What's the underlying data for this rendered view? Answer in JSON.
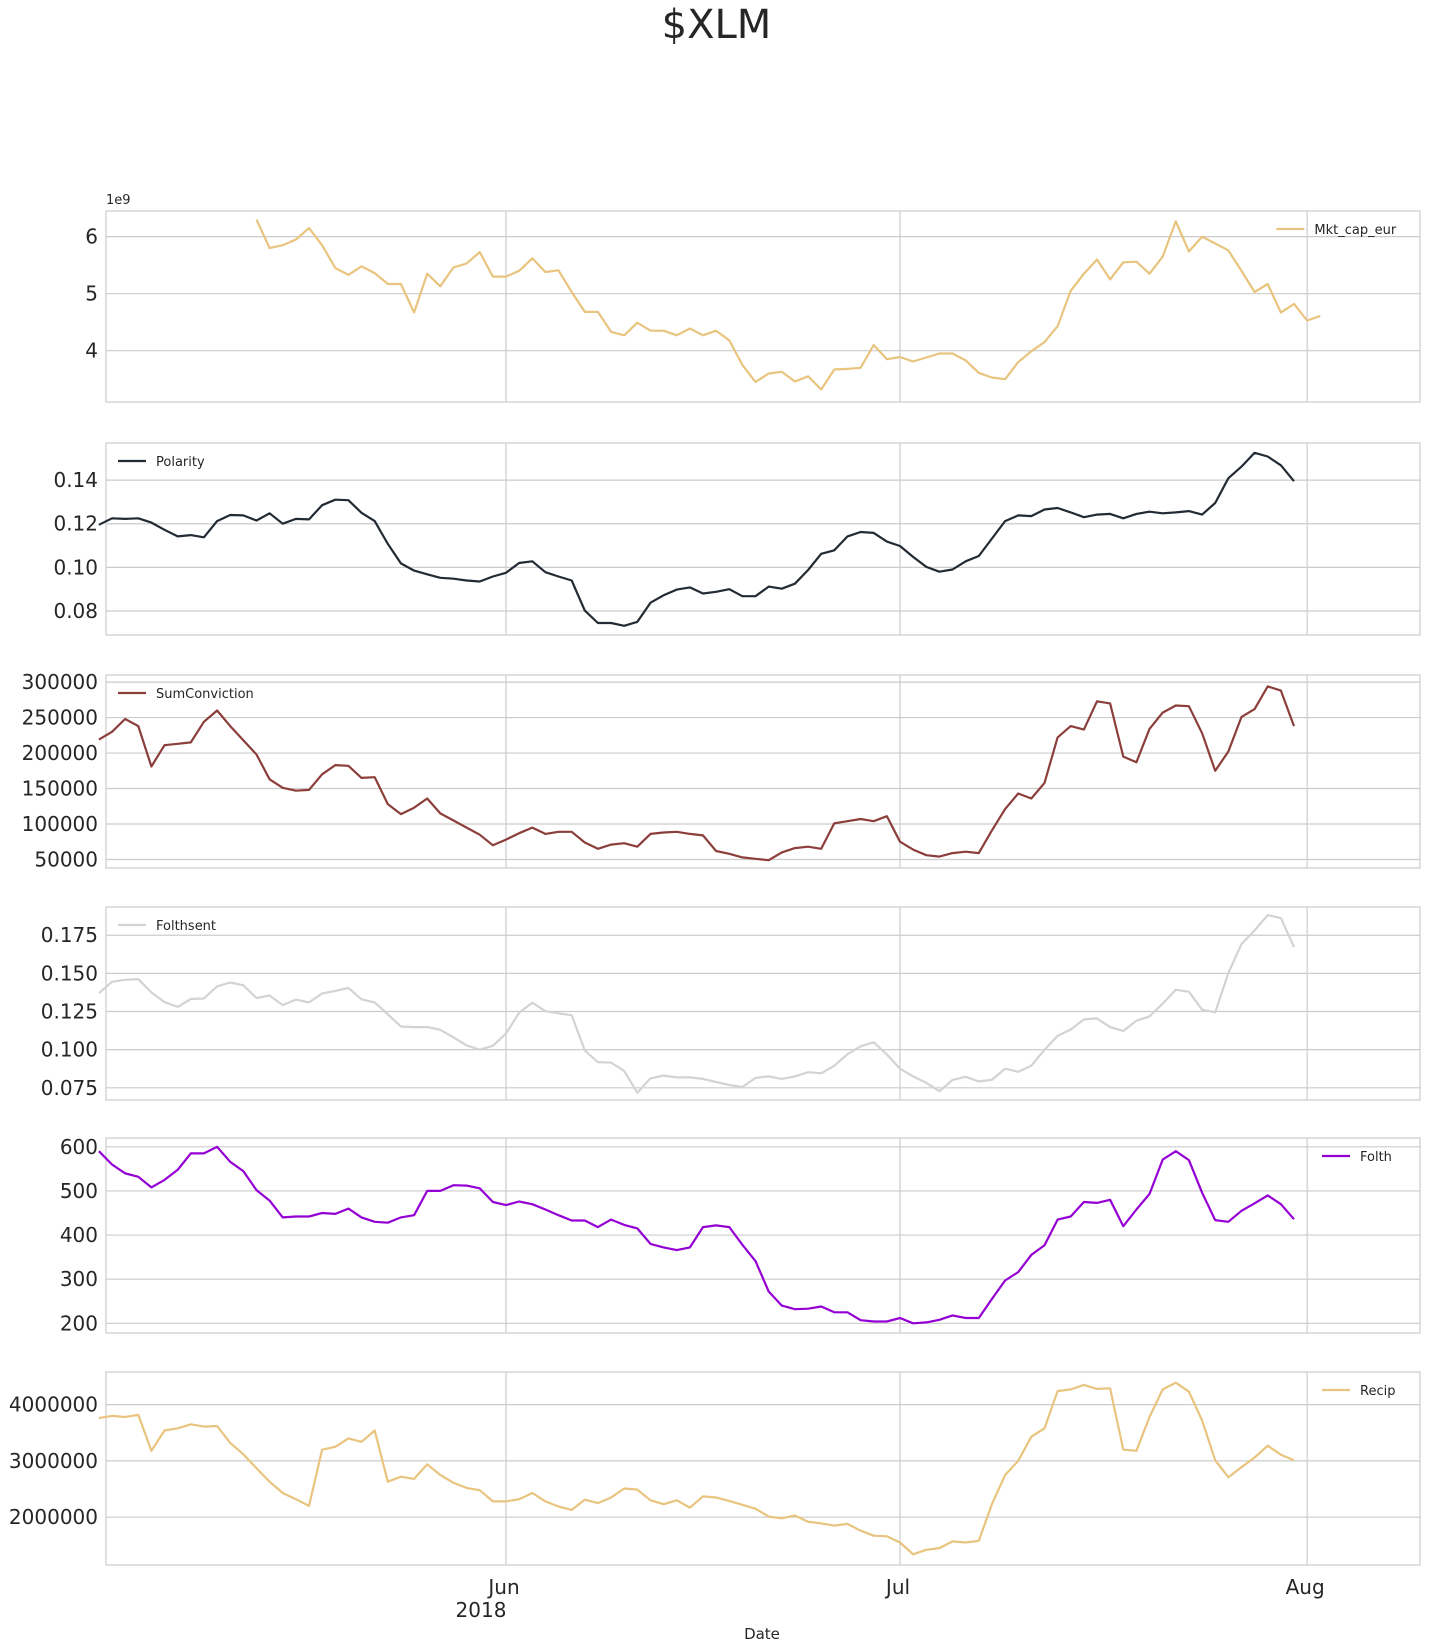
{
  "title": "$XLM",
  "xlabel": "Date",
  "x_ticks": [
    {
      "date": "2018-06-01",
      "label": "Jun",
      "sublabel": "2018"
    },
    {
      "date": "2018-07-01",
      "label": "Jul",
      "sublabel": ""
    },
    {
      "date": "2018-08-01",
      "label": "Aug",
      "sublabel": ""
    }
  ],
  "colors": {
    "grid": "#cccccc",
    "text": "#262626",
    "spine": "#cccccc"
  },
  "chart_data": [
    {
      "type": "line",
      "series": [
        {
          "name": "Mkt_cap_eur",
          "color": "#e8c47e",
          "start": "2018-05-13",
          "values": [
            6300000000.0,
            5800000000.0,
            5850000000.0,
            5950000000.0,
            6150000000.0,
            5850000000.0,
            5450000000.0,
            5330000000.0,
            5480000000.0,
            5360000000.0,
            5170000000.0,
            5170000000.0,
            4670000000.0,
            5350000000.0,
            5130000000.0,
            5460000000.0,
            5530000000.0,
            5730000000.0,
            5300000000.0,
            5300000000.0,
            5400000000.0,
            5620000000.0,
            5380000000.0,
            5410000000.0,
            5030000000.0,
            4680000000.0,
            4680000000.0,
            4330000000.0,
            4270000000.0,
            4490000000.0,
            4350000000.0,
            4350000000.0,
            4270000000.0,
            4390000000.0,
            4270000000.0,
            4350000000.0,
            4180000000.0,
            3750000000.0,
            3450000000.0,
            3600000000.0,
            3630000000.0,
            3460000000.0,
            3550000000.0,
            3320000000.0,
            3670000000.0,
            3680000000.0,
            3700000000.0,
            4100000000.0,
            3850000000.0,
            3890000000.0,
            3810000000.0,
            3880000000.0,
            3950000000.0,
            3950000000.0,
            3830000000.0,
            3610000000.0,
            3530000000.0,
            3500000000.0,
            3800000000.0,
            3990000000.0,
            4150000000.0,
            4430000000.0,
            5050000000.0,
            5350000000.0,
            5600000000.0,
            5250000000.0,
            5550000000.0,
            5560000000.0,
            5350000000.0,
            5650000000.0,
            6270000000.0,
            5740000000.0,
            6000000000.0,
            5880000000.0,
            5760000000.0,
            5400000000.0,
            5030000000.0,
            5170000000.0,
            4670000000.0,
            4820000000.0,
            4530000000.0,
            4610000000.0
          ]
        }
      ],
      "legend": "upper right",
      "ylim": [
        3100000000.0,
        6450000000.0
      ],
      "yticks": [
        4000000000.0,
        5000000000.0,
        6000000000.0
      ],
      "ytick_labels": [
        "4",
        "5",
        "6"
      ],
      "offset_text": "1e9"
    },
    {
      "type": "line",
      "series": [
        {
          "name": "Polarity",
          "color": "#222a33",
          "start": "2018-05-01",
          "values": [
            0.1195,
            0.1225,
            0.1222,
            0.1225,
            0.1205,
            0.1172,
            0.1142,
            0.1148,
            0.1138,
            0.1212,
            0.124,
            0.1238,
            0.1215,
            0.1248,
            0.12,
            0.1222,
            0.122,
            0.1285,
            0.131,
            0.1308,
            0.125,
            0.1212,
            0.1108,
            0.1018,
            0.0985,
            0.0968,
            0.0952,
            0.0948,
            0.094,
            0.0935,
            0.0958,
            0.0975,
            0.102,
            0.1028,
            0.0978,
            0.0958,
            0.094,
            0.0802,
            0.0745,
            0.0745,
            0.0732,
            0.075,
            0.0838,
            0.0872,
            0.0898,
            0.0908,
            0.088,
            0.0888,
            0.09,
            0.0868,
            0.0868,
            0.0912,
            0.0902,
            0.0925,
            0.0988,
            0.1062,
            0.1078,
            0.1142,
            0.1162,
            0.1158,
            0.1118,
            0.1098,
            0.1048,
            0.1002,
            0.098,
            0.099,
            0.1028,
            0.1052,
            0.1132,
            0.1212,
            0.1238,
            0.1235,
            0.1265,
            0.1272,
            0.1252,
            0.123,
            0.1242,
            0.1245,
            0.1225,
            0.1245,
            0.1255,
            0.1248,
            0.1252,
            0.1258,
            0.1242,
            0.1295,
            0.1408,
            0.1462,
            0.1525,
            0.1508,
            0.1468,
            0.1395
          ]
        }
      ],
      "legend": "upper left",
      "ylim": [
        0.069,
        0.157
      ],
      "yticks": [
        0.08,
        0.1,
        0.12,
        0.14
      ],
      "ytick_labels": [
        "0.08",
        "0.10",
        "0.12",
        "0.14"
      ]
    },
    {
      "type": "line",
      "series": [
        {
          "name": "SumConviction",
          "color": "#8b3e3a",
          "start": "2018-05-01",
          "values": [
            219000,
            230000,
            248000,
            238000,
            181000,
            211000,
            213000,
            215000,
            244000,
            260000,
            238000,
            218000,
            198000,
            163000,
            151000,
            147000,
            148000,
            170000,
            183000,
            182000,
            165000,
            166000,
            128000,
            114000,
            123000,
            136000,
            115000,
            105000,
            95000,
            85000,
            70000,
            78000,
            87000,
            95000,
            86000,
            89000,
            89000,
            74000,
            65000,
            71000,
            73000,
            68000,
            86000,
            88000,
            89000,
            86000,
            84000,
            62000,
            58000,
            53000,
            51000,
            49000,
            60000,
            66000,
            68000,
            65000,
            101000,
            104000,
            107000,
            104000,
            111000,
            75000,
            64000,
            56000,
            54000,
            59000,
            61000,
            59000,
            91000,
            121000,
            143000,
            136000,
            158000,
            222000,
            238000,
            233000,
            273000,
            270000,
            195000,
            187000,
            234000,
            257000,
            267000,
            266000,
            228000,
            175000,
            202000,
            251000,
            262000,
            294000,
            288000,
            238000
          ]
        }
      ],
      "legend": "upper left",
      "ylim": [
        38000,
        310000
      ],
      "yticks": [
        50000,
        100000,
        150000,
        200000,
        250000,
        300000
      ],
      "ytick_labels": [
        "50000",
        "100000",
        "150000",
        "200000",
        "250000",
        "300000"
      ]
    },
    {
      "type": "line",
      "series": [
        {
          "name": "Folthsent",
          "color": "#d3d3d3",
          "start": "2018-05-01",
          "values": [
            0.137,
            0.1445,
            0.1458,
            0.1462,
            0.1375,
            0.1312,
            0.128,
            0.1332,
            0.1335,
            0.1415,
            0.144,
            0.1422,
            0.1338,
            0.1355,
            0.1292,
            0.1328,
            0.131,
            0.1368,
            0.1385,
            0.1405,
            0.133,
            0.131,
            0.1232,
            0.1152,
            0.1148,
            0.1148,
            0.113,
            0.108,
            0.1028,
            0.1,
            0.1025,
            0.1105,
            0.1242,
            0.1308,
            0.1252,
            0.1238,
            0.1225,
            0.0995,
            0.0918,
            0.0915,
            0.086,
            0.0718,
            0.0812,
            0.083,
            0.0818,
            0.0818,
            0.0808,
            0.0788,
            0.0768,
            0.0755,
            0.0815,
            0.0825,
            0.0808,
            0.0825,
            0.0852,
            0.0845,
            0.0895,
            0.097,
            0.1022,
            0.1048,
            0.0968,
            0.0875,
            0.0825,
            0.0782,
            0.0728,
            0.0802,
            0.0822,
            0.0792,
            0.0802,
            0.0875,
            0.0855,
            0.0895,
            0.1,
            0.109,
            0.1132,
            0.1198,
            0.1205,
            0.1148,
            0.1122,
            0.119,
            0.1218,
            0.1302,
            0.1392,
            0.138,
            0.1262,
            0.1245,
            0.1502,
            0.1692,
            0.1782,
            0.1882,
            0.1862,
            0.1672
          ]
        }
      ],
      "legend": "upper left",
      "ylim": [
        0.067,
        0.1935
      ],
      "yticks": [
        0.075,
        0.1,
        0.125,
        0.15,
        0.175
      ],
      "ytick_labels": [
        "0.075",
        "0.100",
        "0.125",
        "0.150",
        "0.175"
      ]
    },
    {
      "type": "line",
      "series": [
        {
          "name": "Folth",
          "color": "#9400d3",
          "start": "2018-05-01",
          "values": [
            590,
            560,
            540,
            532,
            508,
            525,
            548,
            585,
            585,
            600,
            566,
            545,
            502,
            478,
            440,
            442,
            442,
            450,
            448,
            460,
            440,
            430,
            428,
            440,
            445,
            500,
            500,
            513,
            512,
            506,
            475,
            468,
            476,
            470,
            458,
            445,
            433,
            433,
            418,
            435,
            423,
            415,
            380,
            372,
            366,
            372,
            418,
            422,
            418,
            378,
            341,
            272,
            240,
            232,
            233,
            238,
            225,
            225,
            207,
            204,
            204,
            212,
            200,
            202,
            208,
            218,
            212,
            212,
            255,
            297,
            316,
            355,
            377,
            435,
            442,
            475,
            473,
            480,
            420,
            458,
            493,
            571,
            590,
            570,
            496,
            434,
            430,
            455,
            472,
            490,
            470,
            436
          ]
        }
      ],
      "legend": "upper right",
      "ylim": [
        178,
        620
      ],
      "yticks": [
        200,
        300,
        400,
        500,
        600
      ],
      "ytick_labels": [
        "200",
        "300",
        "400",
        "500",
        "600"
      ]
    },
    {
      "type": "line",
      "series": [
        {
          "name": "Recip",
          "color": "#e8c47e",
          "start": "2018-05-01",
          "values": [
            3760000,
            3800000,
            3780000,
            3820000,
            3180000,
            3540000,
            3580000,
            3650000,
            3610000,
            3620000,
            3320000,
            3120000,
            2870000,
            2630000,
            2430000,
            2320000,
            2200000,
            3200000,
            3250000,
            3400000,
            3340000,
            3540000,
            2630000,
            2720000,
            2680000,
            2940000,
            2750000,
            2610000,
            2520000,
            2480000,
            2280000,
            2280000,
            2320000,
            2430000,
            2280000,
            2190000,
            2130000,
            2310000,
            2250000,
            2350000,
            2510000,
            2490000,
            2300000,
            2230000,
            2300000,
            2170000,
            2370000,
            2350000,
            2290000,
            2220000,
            2150000,
            2010000,
            1980000,
            2030000,
            1920000,
            1890000,
            1850000,
            1880000,
            1760000,
            1670000,
            1660000,
            1550000,
            1340000,
            1420000,
            1450000,
            1570000,
            1550000,
            1580000,
            2230000,
            2750000,
            3000000,
            3430000,
            3580000,
            4240000,
            4270000,
            4350000,
            4280000,
            4290000,
            3200000,
            3180000,
            3780000,
            4270000,
            4390000,
            4230000,
            3720000,
            3010000,
            2710000,
            2890000,
            3060000,
            3270000,
            3110000,
            3010000
          ]
        }
      ],
      "legend": "upper right",
      "ylim": [
        1150000,
        4580000
      ],
      "yticks": [
        2000000,
        3000000,
        4000000
      ],
      "ytick_labels": [
        "2000000",
        "3000000",
        "4000000"
      ]
    }
  ]
}
